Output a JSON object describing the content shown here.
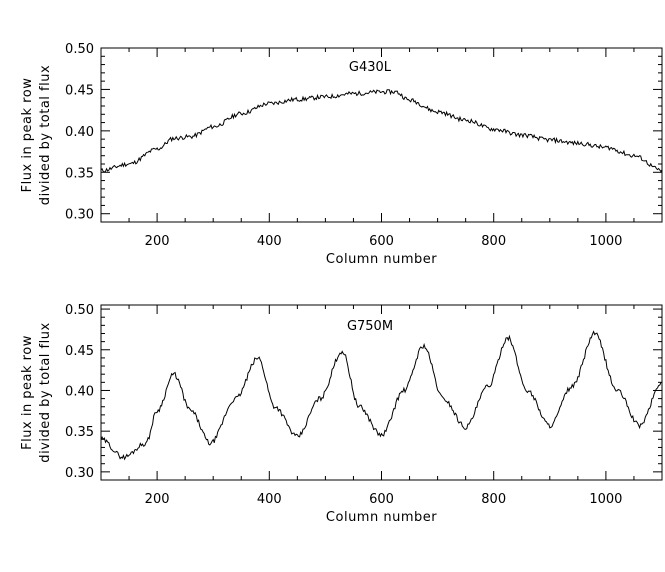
{
  "chart_data": [
    {
      "type": "line",
      "annotation": "G430L",
      "xlabel": "Column number",
      "ylabel_line1": "Flux in peak row",
      "ylabel_line2": "divided by total flux",
      "xlim": [
        100,
        1100
      ],
      "ylim": [
        0.29,
        0.5
      ],
      "xticks": [
        200,
        400,
        600,
        800,
        1000
      ],
      "yticks": [
        "0.30",
        "0.35",
        "0.40",
        "0.45",
        "0.50"
      ],
      "grid": false,
      "series": [
        {
          "x": [
            100,
            150,
            200,
            230,
            260,
            300,
            350,
            400,
            450,
            500,
            550,
            600,
            625,
            650,
            700,
            750,
            800,
            850,
            900,
            950,
            1000,
            1050,
            1100
          ],
          "values": [
            0.352,
            0.36,
            0.378,
            0.391,
            0.393,
            0.405,
            0.421,
            0.433,
            0.438,
            0.441,
            0.445,
            0.447,
            0.447,
            0.437,
            0.423,
            0.413,
            0.402,
            0.395,
            0.389,
            0.385,
            0.38,
            0.37,
            0.352
          ]
        }
      ]
    },
    {
      "type": "line",
      "annotation": "G750M",
      "xlabel": "Column number",
      "ylabel_line1": "Flux in peak row",
      "ylabel_line2": "divided by total flux",
      "xlim": [
        100,
        1100
      ],
      "ylim": [
        0.29,
        0.505
      ],
      "xticks": [
        200,
        400,
        600,
        800,
        1000
      ],
      "yticks": [
        "0.30",
        "0.35",
        "0.40",
        "0.45",
        "0.50"
      ],
      "grid": false,
      "series": [
        {
          "x": [
            100,
            140,
            180,
            200,
            230,
            260,
            295,
            340,
            380,
            410,
            450,
            490,
            530,
            560,
            600,
            640,
            675,
            710,
            750,
            790,
            825,
            860,
            900,
            940,
            980,
            1020,
            1060,
            1100
          ],
          "values": [
            0.34,
            0.318,
            0.335,
            0.375,
            0.42,
            0.375,
            0.335,
            0.39,
            0.44,
            0.38,
            0.343,
            0.39,
            0.448,
            0.38,
            0.345,
            0.4,
            0.455,
            0.39,
            0.355,
            0.405,
            0.465,
            0.4,
            0.357,
            0.405,
            0.47,
            0.4,
            0.357,
            0.41
          ]
        }
      ]
    }
  ]
}
